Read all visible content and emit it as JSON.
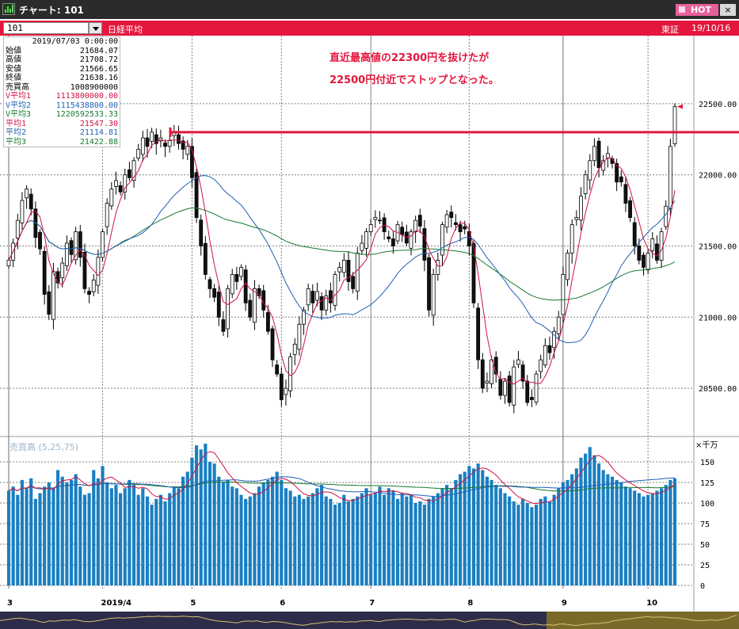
{
  "window": {
    "title": "チャート: 101",
    "hot_label": "HOT",
    "close_label": "×"
  },
  "symbol_bar": {
    "code": "101",
    "name": "日経平均",
    "exchange": "東証",
    "date": "19/10/16"
  },
  "info_panel": {
    "date": "2019/07/03 0:00:00",
    "rows": [
      {
        "label": "始値",
        "value": "21684.07",
        "color": "#000000"
      },
      {
        "label": "高値",
        "value": "21708.72",
        "color": "#000000"
      },
      {
        "label": "安値",
        "value": "21566.65",
        "color": "#000000"
      },
      {
        "label": "終値",
        "value": "21638.16",
        "color": "#000000"
      },
      {
        "label": "売買高",
        "value": "1008900000",
        "color": "#000000"
      },
      {
        "label": "V平均1",
        "value": "1113800000.00",
        "color": "#d11142"
      },
      {
        "label": "V平均2",
        "value": "1115438800.00",
        "color": "#1f5fb5"
      },
      {
        "label": "V平均3",
        "value": "1220592533.33",
        "color": "#157a2e"
      },
      {
        "label": "平均1",
        "value": "21547.30",
        "color": "#d11142"
      },
      {
        "label": "平均2",
        "value": "21114.81",
        "color": "#1f5fb5"
      },
      {
        "label": "平均3",
        "value": "21422.88",
        "color": "#157a2e"
      }
    ]
  },
  "annotation": {
    "line1": "直近最高値の22300円を抜けたが",
    "line2": "22500円付近でストップとなった。",
    "line_price": 22300,
    "color": "#e3173d"
  },
  "volume_panel": {
    "title": "売買高 (5,25,75)",
    "unit": "×千万"
  },
  "chart_data": {
    "type": "candlestick",
    "price_axis": {
      "ticks": [
        22500,
        22000,
        21500,
        21000,
        20500
      ],
      "tick_labels": [
        "22500.00",
        "22000.00",
        "21500.00",
        "21000.00",
        "20500.00"
      ],
      "ylim": [
        20250,
        22700
      ]
    },
    "volume_axis": {
      "ticks": [
        150,
        125,
        100,
        75,
        50,
        25,
        0
      ],
      "ylim": [
        0,
        175
      ]
    },
    "x_labels": [
      {
        "index": 0,
        "label": "3"
      },
      {
        "index": 21,
        "label": "2019/4"
      },
      {
        "index": 41,
        "label": "5"
      },
      {
        "index": 61,
        "label": "6"
      },
      {
        "index": 81,
        "label": "7"
      },
      {
        "index": 103,
        "label": "8"
      },
      {
        "index": 124,
        "label": "9"
      },
      {
        "index": 143,
        "label": "10"
      }
    ],
    "colors": {
      "volume_bar": "#1a7fc1",
      "ma1": "#d11142",
      "ma2": "#1f5fb5",
      "ma3": "#157a2e",
      "grid": "#808080"
    },
    "closes": [
      21400,
      21520,
      21680,
      21820,
      21900,
      21760,
      21560,
      21480,
      21160,
      21020,
      21320,
      21240,
      21380,
      21520,
      21440,
      21600,
      21420,
      21200,
      21160,
      21260,
      21420,
      21600,
      21800,
      21900,
      21960,
      21880,
      22000,
      21980,
      22100,
      22180,
      22260,
      22200,
      22300,
      22220,
      22260,
      22200,
      22240,
      22300,
      22220,
      22180,
      22200,
      21980,
      21700,
      21500,
      21300,
      21200,
      21140,
      21000,
      20900,
      21200,
      21300,
      21250,
      21350,
      21100,
      21000,
      21200,
      21150,
      21050,
      20900,
      20700,
      20600,
      20420,
      20500,
      20720,
      20810,
      20950,
      21050,
      21200,
      21100,
      21180,
      21050,
      21150,
      21100,
      21300,
      21350,
      21400,
      21250,
      21200,
      21450,
      21520,
      21600,
      21650,
      21700,
      21680,
      21600,
      21550,
      21500,
      21650,
      21580,
      21520,
      21600,
      21680,
      21640,
      21400,
      21050,
      21300,
      21400,
      21650,
      21720,
      21700,
      21650,
      21600,
      21620,
      21500,
      21100,
      20700,
      20500,
      20550,
      20700,
      20600,
      20450,
      20550,
      20400,
      20650,
      20700,
      20550,
      20400,
      20420,
      20600,
      20700,
      20800,
      20750,
      20900,
      21000,
      21300,
      21450,
      21650,
      21700,
      21850,
      22000,
      22100,
      22200,
      22050,
      22100,
      22150,
      22080,
      21950,
      21950,
      21800,
      21700,
      21500,
      21400,
      21350,
      21450,
      21550,
      21400,
      21600,
      21780,
      22200,
      22480
    ],
    "volumes": [
      115,
      120,
      110,
      128,
      118,
      130,
      105,
      112,
      120,
      125,
      118,
      140,
      132,
      125,
      128,
      135,
      120,
      110,
      112,
      140,
      130,
      145,
      125,
      118,
      122,
      112,
      118,
      128,
      122,
      110,
      118,
      108,
      98,
      105,
      110,
      102,
      112,
      120,
      118,
      132,
      138,
      155,
      170,
      165,
      172,
      150,
      148,
      132,
      125,
      128,
      120,
      118,
      110,
      105,
      108,
      112,
      120,
      125,
      128,
      132,
      138,
      128,
      118,
      115,
      108,
      110,
      105,
      108,
      112,
      118,
      122,
      108,
      105,
      98,
      100,
      110,
      102,
      105,
      108,
      112,
      118,
      110,
      112,
      120,
      110,
      118,
      115,
      105,
      112,
      108,
      110,
      100,
      102,
      98,
      105,
      108,
      112,
      118,
      122,
      118,
      128,
      135,
      138,
      145,
      142,
      148,
      140,
      132,
      128,
      122,
      118,
      112,
      108,
      102,
      98,
      105,
      100,
      95,
      98,
      105,
      108,
      102,
      110,
      118,
      125,
      128,
      135,
      142,
      155,
      160,
      168,
      158,
      148,
      140,
      135,
      132,
      128,
      125,
      120,
      118,
      115,
      112,
      108,
      110,
      112,
      115,
      118,
      122,
      128,
      130
    ]
  }
}
